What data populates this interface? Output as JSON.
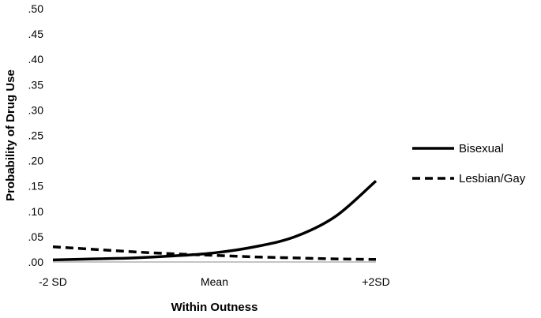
{
  "chart_data": {
    "type": "line",
    "xlabel": "Within Outness",
    "ylabel": "Probability of Drug Use",
    "x_ticks": [
      "-2 SD",
      "Mean",
      "+2SD"
    ],
    "x_range": [
      -2,
      2
    ],
    "ylim": [
      0,
      0.5
    ],
    "y_ticks": [
      ".00",
      ".05",
      ".10",
      ".15",
      ".20",
      ".25",
      ".30",
      ".35",
      ".40",
      ".45",
      ".50"
    ],
    "grid": false,
    "legend_position": "right",
    "series": [
      {
        "name": "Bisexual",
        "style": "solid",
        "color": "#000000",
        "x": [
          -2,
          -1.5,
          -1,
          -0.5,
          0,
          0.5,
          1,
          1.5,
          2
        ],
        "y": [
          0.004,
          0.006,
          0.008,
          0.012,
          0.018,
          0.03,
          0.05,
          0.09,
          0.16
        ]
      },
      {
        "name": "Lesbian/Gay",
        "style": "dashed",
        "color": "#000000",
        "x": [
          -2,
          -1.5,
          -1,
          -0.5,
          0,
          0.5,
          1,
          1.5,
          2
        ],
        "y": [
          0.03,
          0.025,
          0.02,
          0.016,
          0.013,
          0.01,
          0.008,
          0.006,
          0.005
        ]
      }
    ]
  }
}
